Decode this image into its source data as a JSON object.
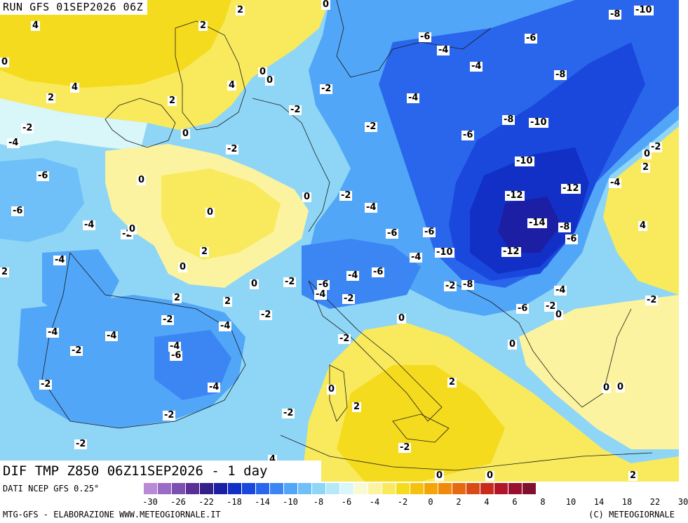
{
  "header": {
    "run": "RUN GFS 01SEP2026 06Z"
  },
  "footer": {
    "title": "DIF TMP Z850 06Z11SEP2026 - 1 day",
    "source": "DATI NCEP GFS 0.25°",
    "credit_left": "MTG-GFS - ELABORAZIONE WWW.METEOGIORNALE.IT",
    "credit_right": "(C) METEOGIORNALE"
  },
  "legend": {
    "colors": [
      "#b98ad6",
      "#9a6cc8",
      "#7d4fb0",
      "#5b2f96",
      "#33208a",
      "#1c1ea3",
      "#1230c6",
      "#1a48dd",
      "#2a66ec",
      "#3c86f4",
      "#52a6f8",
      "#6fc0f8",
      "#8fd6f6",
      "#b6e9f6",
      "#d9f6f8",
      "#fafad2",
      "#fbf3a0",
      "#f8ea5c",
      "#f5db1e",
      "#f6c20d",
      "#f3a509",
      "#ef8a0b",
      "#e56a12",
      "#d84a16",
      "#c82a1c",
      "#b21428",
      "#9a0f30",
      "#80112e"
    ],
    "ticks": [
      "-30",
      "-26",
      "-22",
      "-18",
      "-14",
      "-10",
      "-8",
      "-6",
      "-4",
      "-2",
      "0",
      "2",
      "4",
      "6",
      "8",
      "10",
      "14",
      "18",
      "22",
      "30"
    ]
  },
  "map_labels": [
    {
      "t": "2"
    },
    {
      "t": "4"
    },
    {
      "t": "0"
    },
    {
      "t": "-10"
    },
    {
      "t": "-8"
    },
    {
      "t": "2"
    },
    {
      "t": "0"
    },
    {
      "t": "4"
    },
    {
      "t": "2"
    },
    {
      "t": "-6"
    },
    {
      "t": "-6"
    },
    {
      "t": "-4"
    },
    {
      "t": "2"
    },
    {
      "t": "4"
    },
    {
      "t": "0"
    },
    {
      "t": "-4"
    },
    {
      "t": "-8"
    },
    {
      "t": "-2"
    },
    {
      "t": "-4"
    },
    {
      "t": "0"
    },
    {
      "t": "-2"
    },
    {
      "t": "2"
    },
    {
      "t": "-2"
    },
    {
      "t": "-2"
    },
    {
      "t": "-8"
    },
    {
      "t": "-10"
    },
    {
      "t": "-6"
    },
    {
      "t": "-4"
    },
    {
      "t": "-2"
    },
    {
      "t": "0"
    },
    {
      "t": "-10"
    },
    {
      "t": "0"
    },
    {
      "t": "-2"
    },
    {
      "t": "2"
    },
    {
      "t": "-6"
    },
    {
      "t": "0"
    },
    {
      "t": "-2"
    },
    {
      "t": "0"
    },
    {
      "t": "-4"
    },
    {
      "t": "-12"
    },
    {
      "t": "-12"
    },
    {
      "t": "-4"
    },
    {
      "t": "-6"
    },
    {
      "t": "0"
    },
    {
      "t": "-4"
    },
    {
      "t": "-2"
    },
    {
      "t": "0"
    },
    {
      "t": "-6"
    },
    {
      "t": "-6"
    },
    {
      "t": "-14"
    },
    {
      "t": "-8"
    },
    {
      "t": "4"
    },
    {
      "t": "-6"
    },
    {
      "t": "2"
    },
    {
      "t": "-4"
    },
    {
      "t": "0"
    },
    {
      "t": "-4"
    },
    {
      "t": "-10"
    },
    {
      "t": "-12"
    },
    {
      "t": "2"
    },
    {
      "t": "0"
    },
    {
      "t": "-2"
    },
    {
      "t": "-4"
    },
    {
      "t": "-6"
    },
    {
      "t": "-2"
    },
    {
      "t": "-8"
    },
    {
      "t": "-6"
    },
    {
      "t": "-4"
    },
    {
      "t": "-2"
    },
    {
      "t": "-4"
    },
    {
      "t": "2"
    },
    {
      "t": "2"
    },
    {
      "t": "-2"
    },
    {
      "t": "-2"
    },
    {
      "t": "-2"
    },
    {
      "t": "0"
    },
    {
      "t": "-6"
    },
    {
      "t": "0"
    },
    {
      "t": "-2"
    },
    {
      "t": "-4"
    },
    {
      "t": "-4"
    },
    {
      "t": "-4"
    },
    {
      "t": "-2"
    },
    {
      "t": "0"
    },
    {
      "t": "-2"
    },
    {
      "t": "-4"
    },
    {
      "t": "-6"
    },
    {
      "t": "-2"
    },
    {
      "t": "2"
    },
    {
      "t": "-4"
    },
    {
      "t": "0"
    },
    {
      "t": "0"
    },
    {
      "t": "-2"
    },
    {
      "t": "0"
    },
    {
      "t": "2"
    },
    {
      "t": "-2"
    },
    {
      "t": "-2"
    },
    {
      "t": "-2"
    },
    {
      "t": "4"
    },
    {
      "t": "0"
    },
    {
      "t": "0"
    },
    {
      "t": "2"
    },
    {
      "t": "0"
    },
    {
      "t": "0"
    }
  ]
}
